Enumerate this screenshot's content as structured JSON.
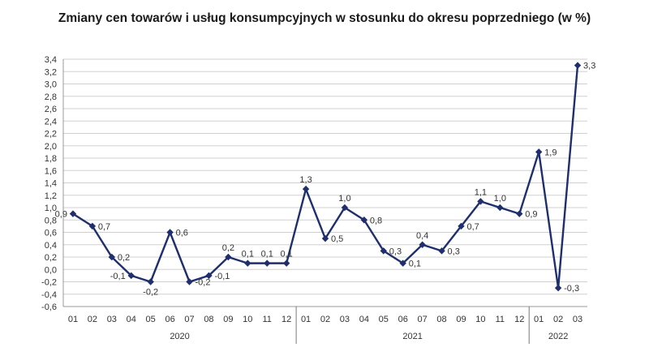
{
  "chart_data": {
    "type": "line",
    "title": "Zmiany cen towarów i usług konsumpcyjnych w stosunku do okresu poprzedniego (w %)",
    "xlabel": "",
    "ylabel": "",
    "ylim": [
      -0.6,
      3.4
    ],
    "ytick_step": 0.2,
    "grid": true,
    "legend": "none",
    "line_color": "#1f2f6e",
    "categories": [
      "01",
      "02",
      "03",
      "04",
      "05",
      "06",
      "07",
      "08",
      "09",
      "10",
      "11",
      "12",
      "01",
      "02",
      "03",
      "04",
      "05",
      "06",
      "07",
      "08",
      "09",
      "10",
      "11",
      "12",
      "01",
      "02",
      "03"
    ],
    "year_groups": [
      {
        "label": "2020",
        "start": 0,
        "end": 11
      },
      {
        "label": "2021",
        "start": 12,
        "end": 23
      },
      {
        "label": "2022",
        "start": 24,
        "end": 26
      }
    ],
    "series": [
      {
        "values": [
          0.9,
          0.7,
          0.2,
          -0.1,
          -0.2,
          0.6,
          -0.2,
          -0.1,
          0.2,
          0.1,
          0.1,
          0.1,
          1.3,
          0.5,
          1.0,
          0.8,
          0.3,
          0.1,
          0.4,
          0.3,
          0.7,
          1.1,
          1.0,
          0.9,
          1.9,
          -0.3,
          3.3
        ],
        "labels": [
          "0,9",
          "0,7",
          "0,2",
          "-0,1",
          "-0,2",
          "0,6",
          "-0,2",
          "-0,1",
          "0,2",
          "0,1",
          "0,1",
          "0,1",
          "1,3",
          "0,5",
          "1,0",
          "0,8",
          "0,3",
          "0,1",
          "0,4",
          "0,3",
          "0,7",
          "1,1",
          "1,0",
          "0,9",
          "1,9",
          "-0,3",
          "3,3"
        ],
        "label_pos": [
          "left",
          "right",
          "right",
          "left",
          "below",
          "right",
          "right",
          "right",
          "above",
          "above",
          "above",
          "above",
          "above",
          "right",
          "above",
          "right",
          "right",
          "right",
          "above",
          "right",
          "right",
          "above",
          "above",
          "right",
          "right",
          "right",
          "right"
        ]
      }
    ]
  }
}
